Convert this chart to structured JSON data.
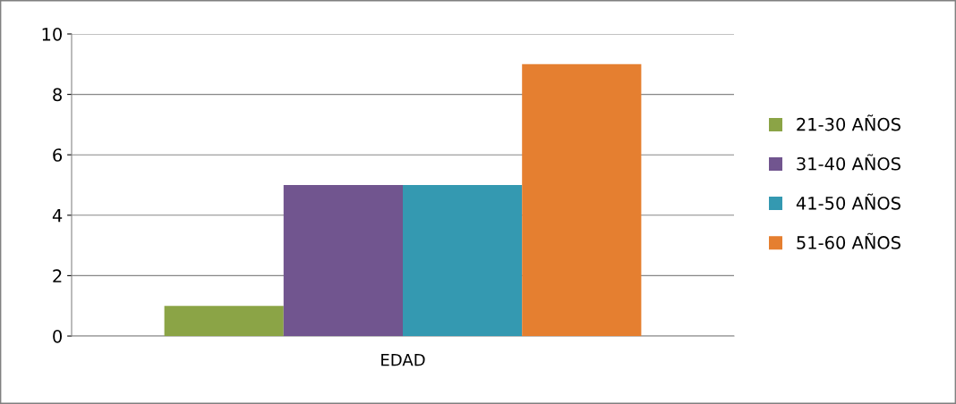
{
  "chart_data": {
    "type": "bar",
    "categories": [
      "EDAD"
    ],
    "series": [
      {
        "name": "21-30 AÑOS",
        "color": "#8ba446",
        "values": [
          1
        ]
      },
      {
        "name": "31-40 AÑOS",
        "color": "#71558f",
        "values": [
          5
        ]
      },
      {
        "name": "41-50 AÑOS",
        "color": "#3499b1",
        "values": [
          5
        ]
      },
      {
        "name": "51-60 AÑOS",
        "color": "#e57f30",
        "values": [
          9
        ]
      }
    ],
    "ylim": [
      0,
      10
    ],
    "yticks": [
      0,
      2,
      4,
      6,
      8,
      10
    ],
    "grid": "y",
    "legend": "right"
  }
}
